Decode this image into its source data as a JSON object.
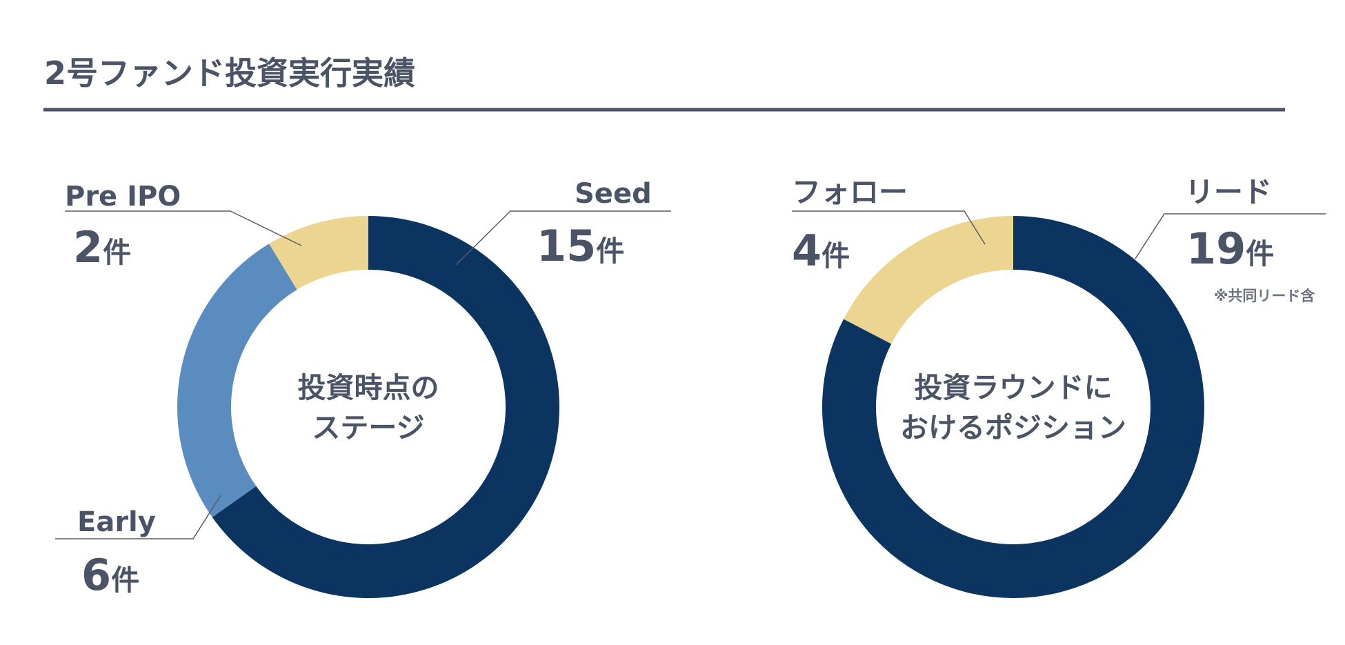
{
  "page": {
    "title": "2号ファンド投資実行実績"
  },
  "colors": {
    "navy": "#0b3461",
    "light_blue": "#5a8cbf",
    "beige": "#ecd591",
    "text": "#4a5466",
    "rule": "#4a5466"
  },
  "chart_data": [
    {
      "type": "pie",
      "variant": "donut",
      "center_label": [
        "投資時点の",
        "ステージ"
      ],
      "unit": "件",
      "start": "top",
      "direction": "clockwise",
      "slices": [
        {
          "label": "Seed",
          "value": 15,
          "value_text": "15",
          "color": "#0b3461"
        },
        {
          "label": "Early",
          "value": 6,
          "value_text": "6",
          "color": "#5a8cbf"
        },
        {
          "label": "Pre IPO",
          "value": 2,
          "value_text": "2",
          "color": "#ecd591"
        }
      ],
      "note": ""
    },
    {
      "type": "pie",
      "variant": "donut",
      "center_label": [
        "投資ラウンドに",
        "おけるポジション"
      ],
      "unit": "件",
      "start": "top",
      "direction": "clockwise",
      "slices": [
        {
          "label": "リード",
          "value": 19,
          "value_text": "19",
          "color": "#0b3461"
        },
        {
          "label": "フォロー",
          "value": 4,
          "value_text": "4",
          "color": "#ecd591"
        }
      ],
      "note": "※共同リード含"
    }
  ]
}
